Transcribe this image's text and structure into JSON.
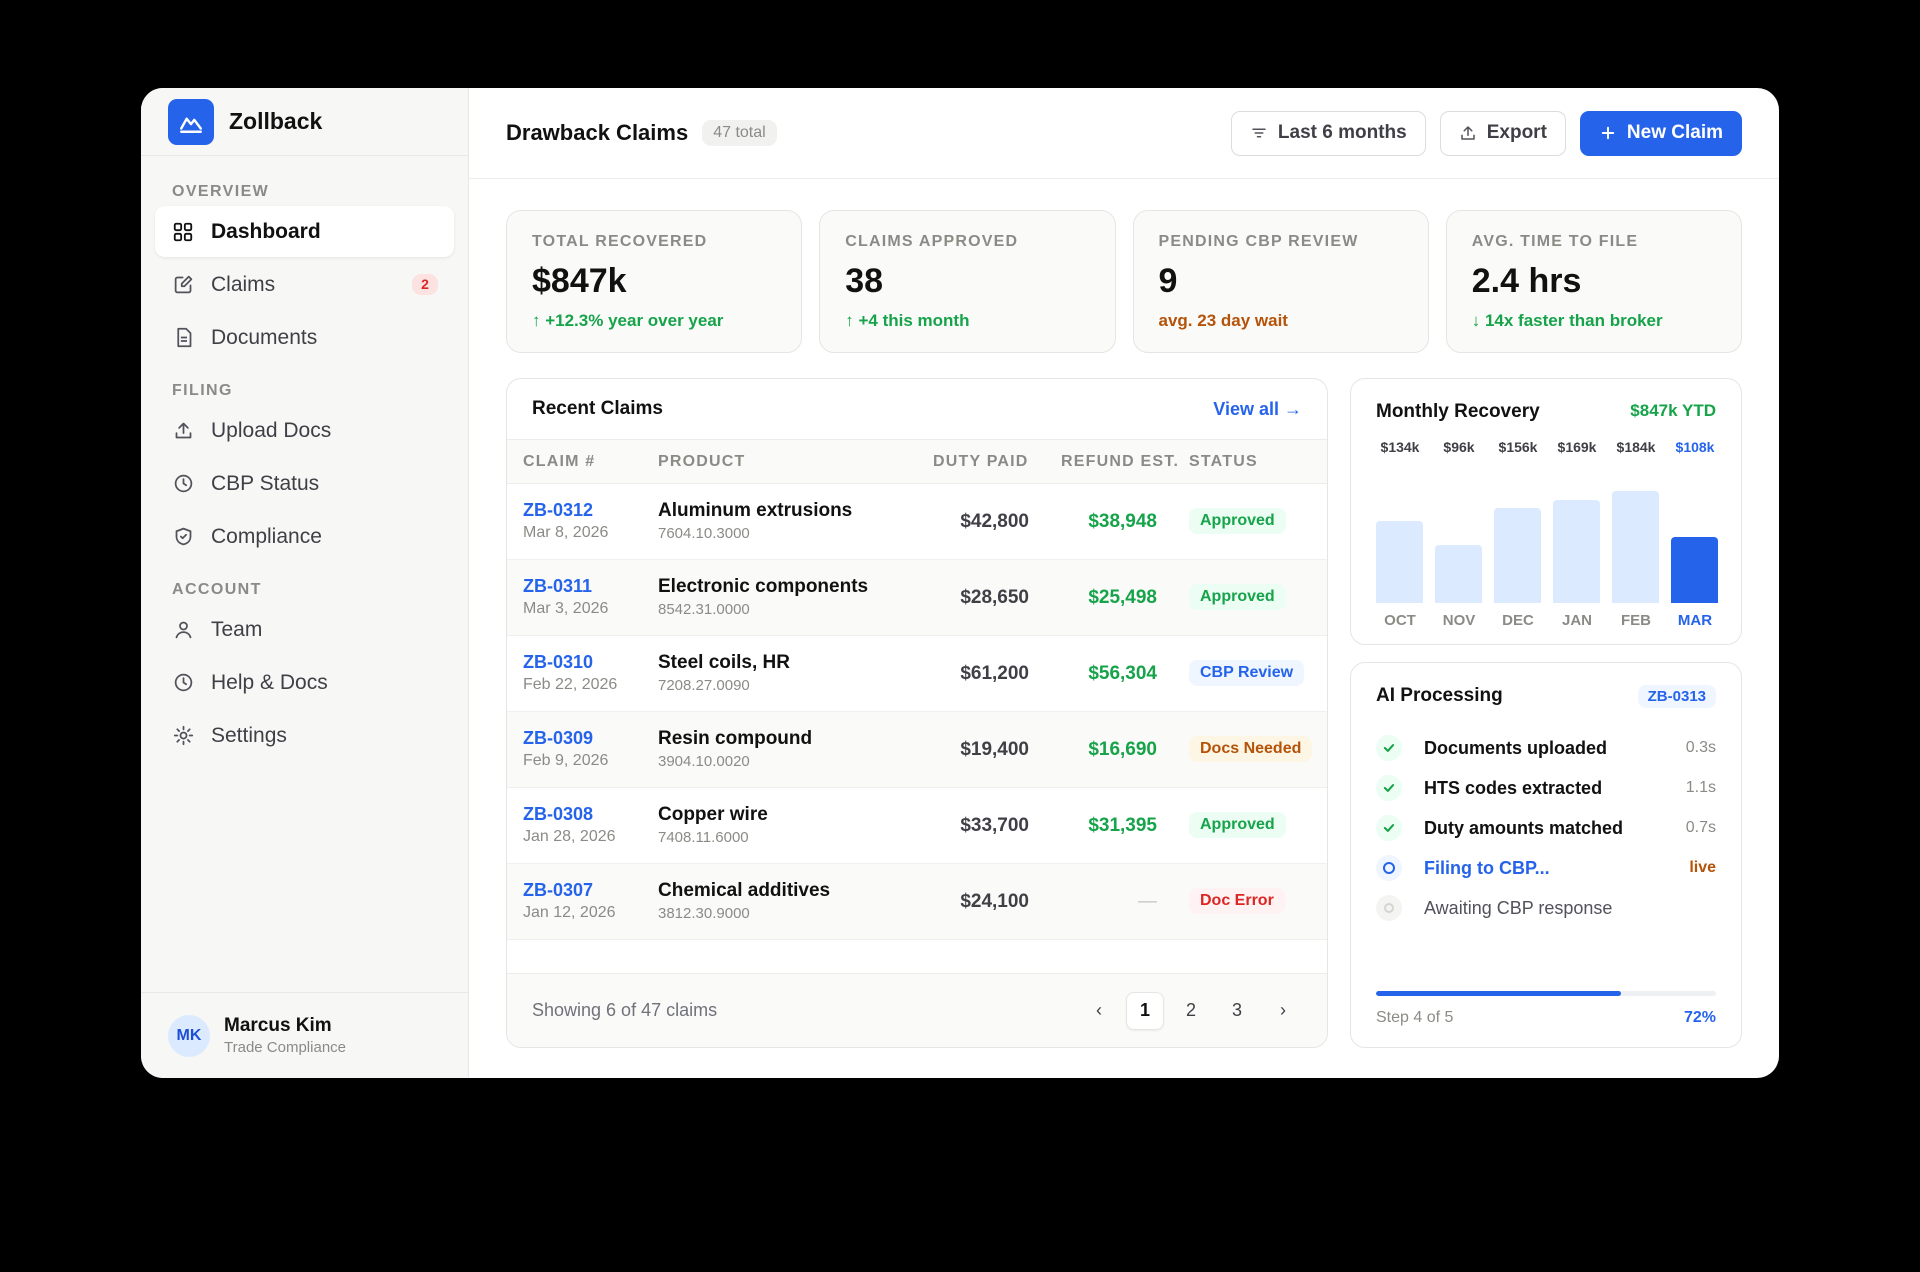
{
  "brand": {
    "name": "Zollback",
    "accent": "#2563eb"
  },
  "sidebar": {
    "sections": [
      {
        "title": "OVERVIEW",
        "items": [
          {
            "label": "Dashboard",
            "icon": "grid-icon",
            "active": true
          },
          {
            "label": "Claims",
            "icon": "edit-icon",
            "badge": "2"
          },
          {
            "label": "Documents",
            "icon": "document-icon"
          }
        ]
      },
      {
        "title": "FILING",
        "items": [
          {
            "label": "Upload Docs",
            "icon": "upload-icon"
          },
          {
            "label": "CBP Status",
            "icon": "clock-icon"
          },
          {
            "label": "Compliance",
            "icon": "shield-icon"
          }
        ]
      },
      {
        "title": "ACCOUNT",
        "items": [
          {
            "label": "Team",
            "icon": "user-icon"
          },
          {
            "label": "Help & Docs",
            "icon": "help-clock-icon"
          },
          {
            "label": "Settings",
            "icon": "sun-gear-icon"
          }
        ]
      }
    ],
    "user": {
      "initials": "MK",
      "name": "Marcus Kim",
      "role": "Trade Compliance"
    }
  },
  "header": {
    "title": "Drawback Claims",
    "count": "47 total",
    "filter_label": "Last 6 months",
    "export_label": "Export",
    "new_label": "New Claim"
  },
  "stats": [
    {
      "label": "TOTAL RECOVERED",
      "value": "$847k",
      "sub": "↑ +12.3% year over year",
      "sub_color": "#16a34a"
    },
    {
      "label": "CLAIMS APPROVED",
      "value": "38",
      "sub": "↑ +4 this month",
      "sub_color": "#16a34a"
    },
    {
      "label": "PENDING CBP REVIEW",
      "value": "9",
      "sub": "avg. 23 day wait",
      "sub_color": "#b45309"
    },
    {
      "label": "AVG. TIME TO FILE",
      "value": "2.4 hrs",
      "sub": "↓ 14x faster than broker",
      "sub_color": "#16a34a"
    }
  ],
  "recent": {
    "title": "Recent Claims",
    "view_all": "View all →",
    "columns": {
      "claim": "CLAIM #",
      "product": "PRODUCT",
      "duty": "DUTY PAID",
      "refund": "REFUND EST.",
      "status": "STATUS"
    },
    "rows": [
      {
        "id": "ZB-0312",
        "date": "Mar 8, 2026",
        "product": "Aluminum extrusions",
        "hts": "7604.10.3000",
        "duty": "$42,800",
        "refund": "$38,948",
        "status": "Approved",
        "status_fg": "#16a34a",
        "status_bg": "#ecfdf3"
      },
      {
        "id": "ZB-0311",
        "date": "Mar 3, 2026",
        "product": "Electronic components",
        "hts": "8542.31.0000",
        "duty": "$28,650",
        "refund": "$25,498",
        "status": "Approved",
        "status_fg": "#16a34a",
        "status_bg": "#ecfdf3"
      },
      {
        "id": "ZB-0310",
        "date": "Feb 22, 2026",
        "product": "Steel coils, HR",
        "hts": "7208.27.0090",
        "duty": "$61,200",
        "refund": "$56,304",
        "status": "CBP Review",
        "status_fg": "#2563eb",
        "status_bg": "#eff6ff"
      },
      {
        "id": "ZB-0309",
        "date": "Feb 9, 2026",
        "product": "Resin compound",
        "hts": "3904.10.0020",
        "duty": "$19,400",
        "refund": "$16,690",
        "status": "Docs Needed",
        "status_fg": "#b45309",
        "status_bg": "#fef6e4"
      },
      {
        "id": "ZB-0308",
        "date": "Jan 28, 2026",
        "product": "Copper wire",
        "hts": "7408.11.6000",
        "duty": "$33,700",
        "refund": "$31,395",
        "status": "Approved",
        "status_fg": "#16a34a",
        "status_bg": "#ecfdf3"
      },
      {
        "id": "ZB-0307",
        "date": "Jan 12, 2026",
        "product": "Chemical additives",
        "hts": "3812.30.9000",
        "duty": "$24,100",
        "refund": "—",
        "status": "Doc Error",
        "status_fg": "#dc2626",
        "status_bg": "#fef2f2"
      }
    ],
    "showing": "Showing 6 of 47 claims",
    "pages": [
      "‹",
      "1",
      "2",
      "3",
      "›"
    ],
    "current_page": "1"
  },
  "recovery": {
    "title": "Monthly Recovery",
    "ytd": "$847k YTD"
  },
  "chart_data": {
    "type": "bar",
    "categories": [
      "OCT",
      "NOV",
      "DEC",
      "JAN",
      "FEB",
      "MAR"
    ],
    "values": [
      134,
      96,
      156,
      169,
      184,
      108
    ],
    "value_labels": [
      "$134k",
      "$96k",
      "$156k",
      "$169k",
      "$184k",
      "$108k"
    ],
    "highlight": "MAR",
    "ylim": [
      0,
      184
    ],
    "title": "Monthly Recovery"
  },
  "ai": {
    "title": "AI Processing",
    "tag": "ZB-0313",
    "steps": [
      {
        "label": "Documents uploaded",
        "time": "0.3s",
        "state": "done"
      },
      {
        "label": "HTS codes extracted",
        "time": "1.1s",
        "state": "done"
      },
      {
        "label": "Duty amounts matched",
        "time": "0.7s",
        "state": "done"
      },
      {
        "label": "Filing to CBP...",
        "time": "live",
        "state": "active"
      },
      {
        "label": "Awaiting CBP response",
        "time": "",
        "state": "pending"
      }
    ],
    "step_text": "Step 4 of 5",
    "progress": 72,
    "progress_text": "72%"
  }
}
